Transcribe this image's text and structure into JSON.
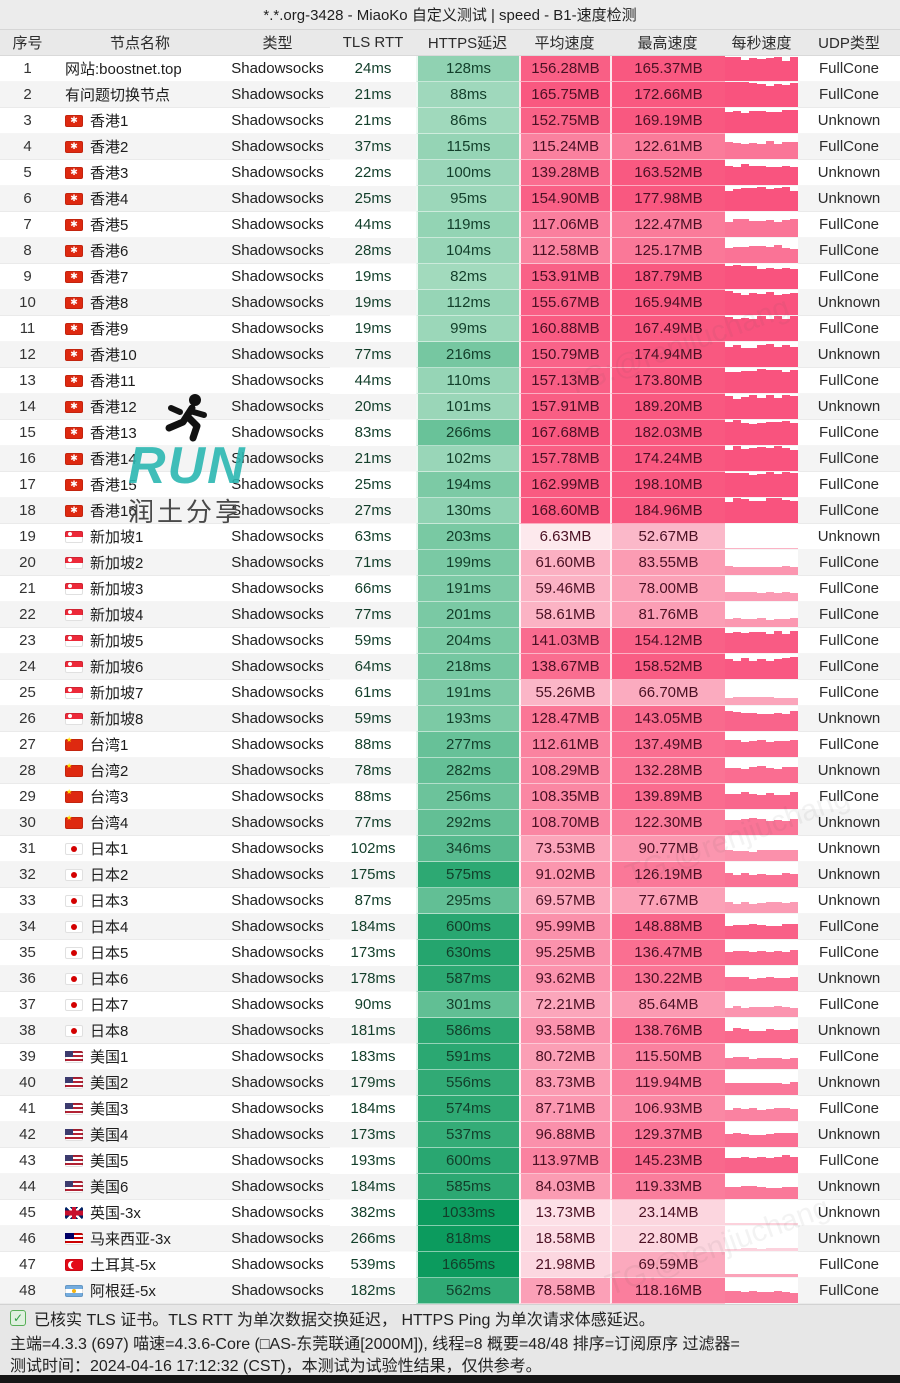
{
  "title": "*.*.org-3428 - MiaoKo 自定义测试 | speed - B1-速度检测",
  "columns": [
    "序号",
    "节点名称",
    "类型",
    "TLS RTT",
    "HTTPS延迟",
    "平均速度",
    "最高速度",
    "每秒速度",
    "UDP类型"
  ],
  "units": {
    "latency": "ms",
    "speed": "MB"
  },
  "colors": {
    "green_light": "#e8f7ea",
    "green_dark": "#0c9b5e",
    "pink_light": "#fdf3f5",
    "pink_dark": "#f95880",
    "spark_pink": "#f9537e",
    "titlebar_bg": "#ececec",
    "header_bg": "#e9e9e9",
    "footer_bg": "#e7e7e7"
  },
  "rows": [
    {
      "no": 1,
      "flag": "",
      "name": "网站:boostnet.top",
      "type": "Shadowsocks",
      "tls": 24,
      "https": 128,
      "avg": 156.28,
      "max": 165.37,
      "udp": "FullCone"
    },
    {
      "no": 2,
      "flag": "",
      "name": "有问题切换节点",
      "type": "Shadowsocks",
      "tls": 21,
      "https": 88,
      "avg": 165.75,
      "max": 172.66,
      "udp": "FullCone"
    },
    {
      "no": 3,
      "flag": "hk",
      "name": "香港1",
      "type": "Shadowsocks",
      "tls": 21,
      "https": 86,
      "avg": 152.75,
      "max": 169.19,
      "udp": "Unknown"
    },
    {
      "no": 4,
      "flag": "hk",
      "name": "香港2",
      "type": "Shadowsocks",
      "tls": 37,
      "https": 115,
      "avg": 115.24,
      "max": 122.61,
      "udp": "FullCone"
    },
    {
      "no": 5,
      "flag": "hk",
      "name": "香港3",
      "type": "Shadowsocks",
      "tls": 22,
      "https": 100,
      "avg": 139.28,
      "max": 163.52,
      "udp": "Unknown"
    },
    {
      "no": 6,
      "flag": "hk",
      "name": "香港4",
      "type": "Shadowsocks",
      "tls": 25,
      "https": 95,
      "avg": 154.9,
      "max": 177.98,
      "udp": "Unknown"
    },
    {
      "no": 7,
      "flag": "hk",
      "name": "香港5",
      "type": "Shadowsocks",
      "tls": 44,
      "https": 119,
      "avg": 117.06,
      "max": 122.47,
      "udp": "FullCone"
    },
    {
      "no": 8,
      "flag": "hk",
      "name": "香港6",
      "type": "Shadowsocks",
      "tls": 28,
      "https": 104,
      "avg": 112.58,
      "max": 125.17,
      "udp": "FullCone"
    },
    {
      "no": 9,
      "flag": "hk",
      "name": "香港7",
      "type": "Shadowsocks",
      "tls": 19,
      "https": 82,
      "avg": 153.91,
      "max": 187.79,
      "udp": "FullCone"
    },
    {
      "no": 10,
      "flag": "hk",
      "name": "香港8",
      "type": "Shadowsocks",
      "tls": 19,
      "https": 112,
      "avg": 155.67,
      "max": 165.94,
      "udp": "Unknown"
    },
    {
      "no": 11,
      "flag": "hk",
      "name": "香港9",
      "type": "Shadowsocks",
      "tls": 19,
      "https": 99,
      "avg": 160.88,
      "max": 167.49,
      "udp": "FullCone"
    },
    {
      "no": 12,
      "flag": "hk",
      "name": "香港10",
      "type": "Shadowsocks",
      "tls": 77,
      "https": 216,
      "avg": 150.79,
      "max": 174.94,
      "udp": "Unknown"
    },
    {
      "no": 13,
      "flag": "hk",
      "name": "香港11",
      "type": "Shadowsocks",
      "tls": 44,
      "https": 110,
      "avg": 157.13,
      "max": 173.8,
      "udp": "FullCone"
    },
    {
      "no": 14,
      "flag": "hk",
      "name": "香港12",
      "type": "Shadowsocks",
      "tls": 20,
      "https": 101,
      "avg": 157.91,
      "max": 189.2,
      "udp": "Unknown"
    },
    {
      "no": 15,
      "flag": "hk",
      "name": "香港13",
      "type": "Shadowsocks",
      "tls": 83,
      "https": 266,
      "avg": 167.68,
      "max": 182.03,
      "udp": "FullCone"
    },
    {
      "no": 16,
      "flag": "hk",
      "name": "香港14",
      "type": "Shadowsocks",
      "tls": 21,
      "https": 102,
      "avg": 157.78,
      "max": 174.24,
      "udp": "FullCone"
    },
    {
      "no": 17,
      "flag": "hk",
      "name": "香港15",
      "type": "Shadowsocks",
      "tls": 25,
      "https": 194,
      "avg": 162.99,
      "max": 198.1,
      "udp": "FullCone"
    },
    {
      "no": 18,
      "flag": "hk",
      "name": "香港16",
      "type": "Shadowsocks",
      "tls": 27,
      "https": 130,
      "avg": 168.6,
      "max": 184.96,
      "udp": "FullCone"
    },
    {
      "no": 19,
      "flag": "sg",
      "name": "新加坡1",
      "type": "Shadowsocks",
      "tls": 63,
      "https": 203,
      "avg": 6.63,
      "max": 52.67,
      "udp": "Unknown"
    },
    {
      "no": 20,
      "flag": "sg",
      "name": "新加坡2",
      "type": "Shadowsocks",
      "tls": 71,
      "https": 199,
      "avg": 61.6,
      "max": 83.55,
      "udp": "FullCone"
    },
    {
      "no": 21,
      "flag": "sg",
      "name": "新加坡3",
      "type": "Shadowsocks",
      "tls": 66,
      "https": 191,
      "avg": 59.46,
      "max": 78.0,
      "udp": "FullCone"
    },
    {
      "no": 22,
      "flag": "sg",
      "name": "新加坡4",
      "type": "Shadowsocks",
      "tls": 77,
      "https": 201,
      "avg": 58.61,
      "max": 81.76,
      "udp": "FullCone"
    },
    {
      "no": 23,
      "flag": "sg",
      "name": "新加坡5",
      "type": "Shadowsocks",
      "tls": 59,
      "https": 204,
      "avg": 141.03,
      "max": 154.12,
      "udp": "FullCone"
    },
    {
      "no": 24,
      "flag": "sg",
      "name": "新加坡6",
      "type": "Shadowsocks",
      "tls": 64,
      "https": 218,
      "avg": 138.67,
      "max": 158.52,
      "udp": "FullCone"
    },
    {
      "no": 25,
      "flag": "sg",
      "name": "新加坡7",
      "type": "Shadowsocks",
      "tls": 61,
      "https": 191,
      "avg": 55.26,
      "max": 66.7,
      "udp": "FullCone"
    },
    {
      "no": 26,
      "flag": "sg",
      "name": "新加坡8",
      "type": "Shadowsocks",
      "tls": 59,
      "https": 193,
      "avg": 128.47,
      "max": 143.05,
      "udp": "Unknown"
    },
    {
      "no": 27,
      "flag": "tw",
      "name": "台湾1",
      "type": "Shadowsocks",
      "tls": 88,
      "https": 277,
      "avg": 112.61,
      "max": 137.49,
      "udp": "FullCone"
    },
    {
      "no": 28,
      "flag": "tw",
      "name": "台湾2",
      "type": "Shadowsocks",
      "tls": 78,
      "https": 282,
      "avg": 108.29,
      "max": 132.28,
      "udp": "Unknown"
    },
    {
      "no": 29,
      "flag": "tw",
      "name": "台湾3",
      "type": "Shadowsocks",
      "tls": 88,
      "https": 256,
      "avg": 108.35,
      "max": 139.89,
      "udp": "FullCone"
    },
    {
      "no": 30,
      "flag": "tw",
      "name": "台湾4",
      "type": "Shadowsocks",
      "tls": 77,
      "https": 292,
      "avg": 108.7,
      "max": 122.3,
      "udp": "Unknown"
    },
    {
      "no": 31,
      "flag": "jp",
      "name": "日本1",
      "type": "Shadowsocks",
      "tls": 102,
      "https": 346,
      "avg": 73.53,
      "max": 90.77,
      "udp": "Unknown"
    },
    {
      "no": 32,
      "flag": "jp",
      "name": "日本2",
      "type": "Shadowsocks",
      "tls": 175,
      "https": 575,
      "avg": 91.02,
      "max": 126.19,
      "udp": "Unknown"
    },
    {
      "no": 33,
      "flag": "jp",
      "name": "日本3",
      "type": "Shadowsocks",
      "tls": 87,
      "https": 295,
      "avg": 69.57,
      "max": 77.67,
      "udp": "Unknown"
    },
    {
      "no": 34,
      "flag": "jp",
      "name": "日本4",
      "type": "Shadowsocks",
      "tls": 184,
      "https": 600,
      "avg": 95.99,
      "max": 148.88,
      "udp": "FullCone"
    },
    {
      "no": 35,
      "flag": "jp",
      "name": "日本5",
      "type": "Shadowsocks",
      "tls": 173,
      "https": 630,
      "avg": 95.25,
      "max": 136.47,
      "udp": "FullCone"
    },
    {
      "no": 36,
      "flag": "jp",
      "name": "日本6",
      "type": "Shadowsocks",
      "tls": 178,
      "https": 587,
      "avg": 93.62,
      "max": 130.22,
      "udp": "Unknown"
    },
    {
      "no": 37,
      "flag": "jp",
      "name": "日本7",
      "type": "Shadowsocks",
      "tls": 90,
      "https": 301,
      "avg": 72.21,
      "max": 85.64,
      "udp": "FullCone"
    },
    {
      "no": 38,
      "flag": "jp",
      "name": "日本8",
      "type": "Shadowsocks",
      "tls": 181,
      "https": 586,
      "avg": 93.58,
      "max": 138.76,
      "udp": "Unknown"
    },
    {
      "no": 39,
      "flag": "us",
      "name": "美国1",
      "type": "Shadowsocks",
      "tls": 183,
      "https": 591,
      "avg": 80.72,
      "max": 115.5,
      "udp": "FullCone"
    },
    {
      "no": 40,
      "flag": "us",
      "name": "美国2",
      "type": "Shadowsocks",
      "tls": 179,
      "https": 556,
      "avg": 83.73,
      "max": 119.94,
      "udp": "Unknown"
    },
    {
      "no": 41,
      "flag": "us",
      "name": "美国3",
      "type": "Shadowsocks",
      "tls": 184,
      "https": 574,
      "avg": 87.71,
      "max": 106.93,
      "udp": "FullCone"
    },
    {
      "no": 42,
      "flag": "us",
      "name": "美国4",
      "type": "Shadowsocks",
      "tls": 173,
      "https": 537,
      "avg": 96.88,
      "max": 129.37,
      "udp": "Unknown"
    },
    {
      "no": 43,
      "flag": "us",
      "name": "美国5",
      "type": "Shadowsocks",
      "tls": 193,
      "https": 600,
      "avg": 113.97,
      "max": 145.23,
      "udp": "FullCone"
    },
    {
      "no": 44,
      "flag": "us",
      "name": "美国6",
      "type": "Shadowsocks",
      "tls": 184,
      "https": 585,
      "avg": 84.03,
      "max": 119.33,
      "udp": "Unknown"
    },
    {
      "no": 45,
      "flag": "gb",
      "name": "英国-3x",
      "type": "Shadowsocks",
      "tls": 382,
      "https": 1033,
      "avg": 13.73,
      "max": 23.14,
      "udp": "Unknown"
    },
    {
      "no": 46,
      "flag": "my",
      "name": "马来西亚-3x",
      "type": "Shadowsocks",
      "tls": 266,
      "https": 818,
      "avg": 18.58,
      "max": 22.8,
      "udp": "Unknown"
    },
    {
      "no": 47,
      "flag": "tr",
      "name": "土耳其-5x",
      "type": "Shadowsocks",
      "tls": 539,
      "https": 1665,
      "avg": 21.98,
      "max": 69.59,
      "udp": "FullCone"
    },
    {
      "no": 48,
      "flag": "ar",
      "name": "阿根廷-5x",
      "type": "Shadowsocks",
      "tls": 182,
      "https": 562,
      "avg": 78.58,
      "max": 118.16,
      "udp": "FullCone"
    }
  ],
  "footer": {
    "verify_line": "已核实 TLS 证书。TLS RTT 为单次数据交换延迟， HTTPS Ping 为单次请求体感延迟。",
    "info_line": "主端=4.3.3 (697) 喵速=4.3.6-Core (□AS-东莞联通[2000M]), 线程=8 概要=48/48 排序=订阅原序 过滤器=",
    "time_line": "测试时间：2024-04-16 17:12:32 (CST)，本测试为试验性结果，仅供参考。"
  },
  "watermark": {
    "run_text": "RUN",
    "share_text": "润土分享",
    "tg_text": "TG:@renjiuchang"
  }
}
